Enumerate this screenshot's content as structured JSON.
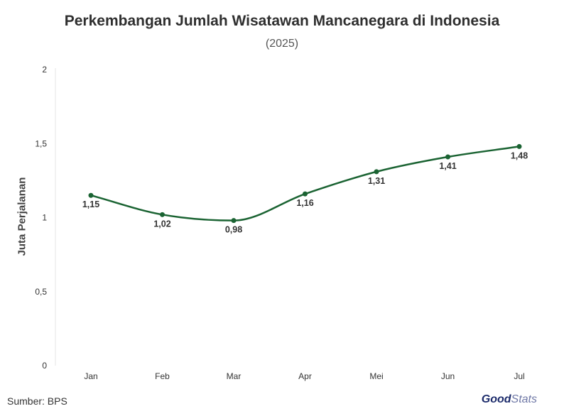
{
  "chart_data": {
    "type": "line",
    "title": "Perkembangan Jumlah Wisatawan Mancanegara di Indonesia",
    "subtitle": "(2025)",
    "ylabel": "Juta Perjalanan",
    "xlabel": "",
    "categories": [
      "Jan",
      "Feb",
      "Mar",
      "Apr",
      "Mei",
      "Jun",
      "Jul"
    ],
    "values": [
      1.15,
      1.02,
      0.98,
      1.16,
      1.31,
      1.41,
      1.48
    ],
    "data_labels": [
      "1,15",
      "1,02",
      "0,98",
      "1,16",
      "1,31",
      "1,41",
      "1,48"
    ],
    "ylim": [
      0,
      2
    ],
    "yticks": [
      0,
      0.5,
      1,
      1.5,
      2
    ],
    "ytick_labels": [
      "0",
      "0,5",
      "1",
      "1,5",
      "2"
    ],
    "grid": false,
    "line_color": "#1a6332"
  },
  "footer": {
    "source": "Sumber: BPS",
    "logo_good": "Good",
    "logo_stats": "Stats"
  }
}
